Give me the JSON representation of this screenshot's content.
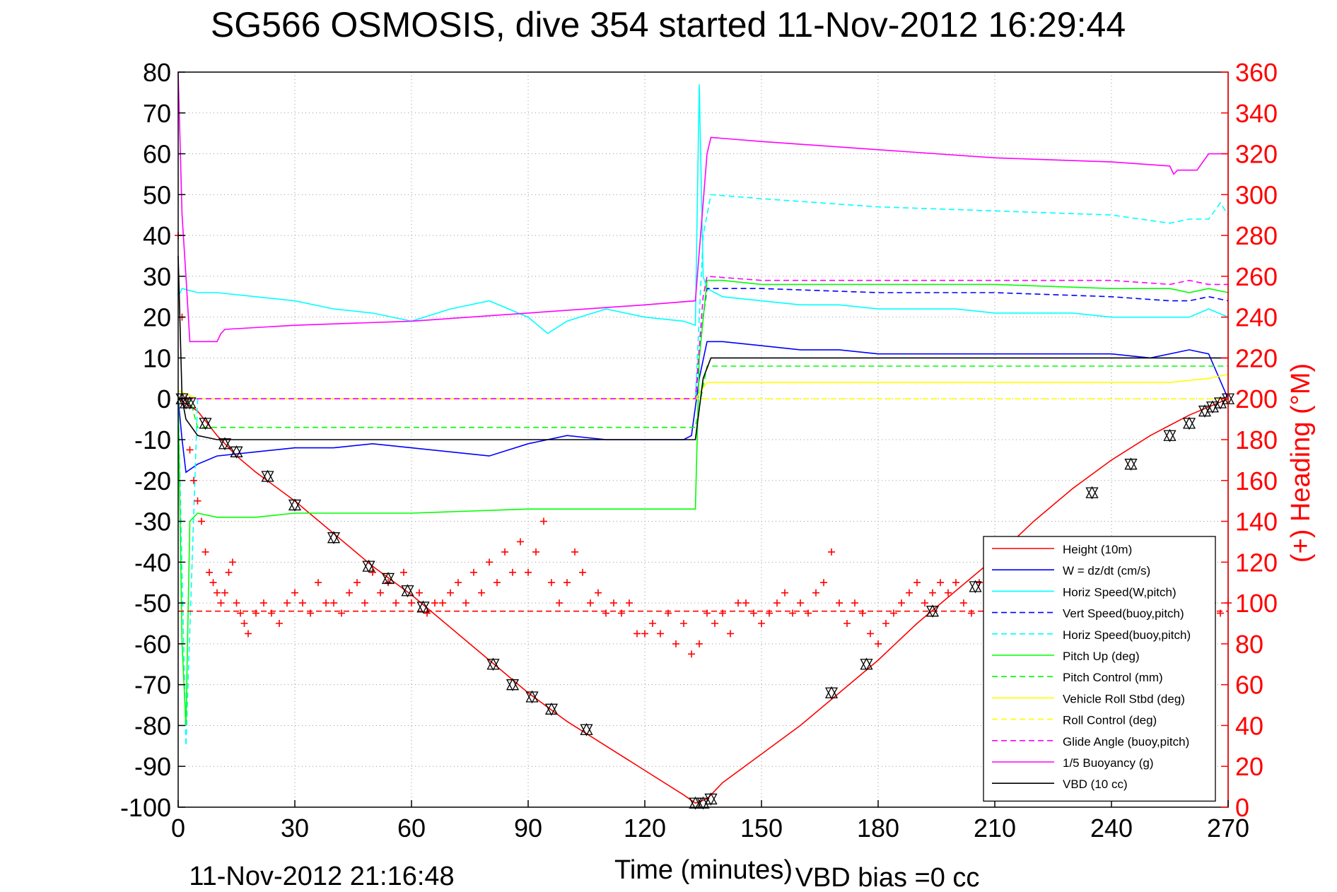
{
  "chart_data": {
    "type": "line",
    "title": "SG566 OSMOSIS, dive 354 started 11-Nov-2012 16:29:44",
    "xlabel": "Time (minutes)",
    "ylabel_right": "(+) Heading (°M)",
    "footer_left": "11-Nov-2012 21:16:48",
    "footer_right": "VBD bias =0 cc",
    "xlim": [
      0,
      270
    ],
    "ylim_left": [
      -100,
      80
    ],
    "ylim_right": [
      0,
      360
    ],
    "xticks": [
      0,
      30,
      60,
      90,
      120,
      150,
      180,
      210,
      240,
      270
    ],
    "yticks_left": [
      80,
      70,
      60,
      50,
      40,
      30,
      20,
      10,
      0,
      -10,
      -20,
      -30,
      -40,
      -50,
      -60,
      -70,
      -80,
      -90,
      -100
    ],
    "yticks_right": [
      360,
      340,
      320,
      300,
      280,
      260,
      240,
      220,
      200,
      180,
      160,
      140,
      120,
      100,
      80,
      60,
      40,
      20,
      0
    ],
    "grid": true,
    "legend_position": "bottom-right",
    "colors": {
      "height": "#ff0000",
      "w": "#0000ff",
      "hspeed": "#00ffff",
      "pitch": "#00ff00",
      "roll": "#ffff00",
      "glide": "#ff00ff",
      "vbd": "#000000",
      "heading": "#ff0000"
    },
    "series": [
      {
        "name": "Height (10m)",
        "color": "#ff0000",
        "style": "solid",
        "marker": "",
        "x": [
          0,
          5,
          10,
          15,
          20,
          30,
          40,
          50,
          60,
          70,
          80,
          90,
          100,
          110,
          120,
          130,
          133,
          136,
          140,
          150,
          160,
          170,
          180,
          190,
          200,
          210,
          220,
          230,
          240,
          250,
          260,
          270
        ],
        "y": [
          0,
          -3,
          -9,
          -14,
          -18,
          -25,
          -33,
          -41,
          -48,
          -56,
          -64,
          -72,
          -79,
          -85,
          -91,
          -97,
          -99,
          -98,
          -94,
          -87,
          -80,
          -72,
          -64,
          -55,
          -47,
          -39,
          -30,
          -22,
          -15,
          -9,
          -4,
          0
        ]
      },
      {
        "name": "W = dz/dt (cm/s)",
        "color": "#0000ff",
        "style": "solid",
        "marker": "",
        "x": [
          0,
          1,
          2,
          5,
          10,
          20,
          30,
          40,
          50,
          60,
          70,
          80,
          90,
          100,
          110,
          120,
          130,
          132,
          134,
          136,
          140,
          150,
          160,
          170,
          180,
          190,
          200,
          210,
          220,
          230,
          240,
          250,
          260,
          265,
          270
        ],
        "y": [
          0,
          -10,
          -18,
          -16,
          -14,
          -13,
          -12,
          -12,
          -11,
          -12,
          -13,
          -14,
          -11,
          -9,
          -10,
          -10,
          -10,
          -9,
          5,
          14,
          14,
          13,
          12,
          12,
          11,
          11,
          11,
          11,
          11,
          11,
          11,
          10,
          12,
          11,
          0
        ]
      },
      {
        "name": "Horiz Speed(W,pitch)",
        "color": "#00ffff",
        "style": "solid",
        "marker": "",
        "x": [
          0,
          1,
          5,
          10,
          20,
          30,
          40,
          50,
          60,
          70,
          80,
          90,
          95,
          100,
          110,
          120,
          130,
          133,
          134,
          135,
          136,
          140,
          150,
          160,
          170,
          180,
          190,
          200,
          210,
          220,
          230,
          240,
          250,
          260,
          265,
          270
        ],
        "y": [
          25,
          27,
          26,
          26,
          25,
          24,
          22,
          21,
          19,
          22,
          24,
          20,
          16,
          19,
          22,
          20,
          19,
          18,
          77,
          30,
          27,
          25,
          24,
          23,
          23,
          22,
          22,
          22,
          21,
          21,
          21,
          20,
          20,
          20,
          22,
          20
        ]
      },
      {
        "name": "Vert Speed(buoy,pitch)",
        "color": "#0000ff",
        "style": "dashed",
        "marker": "",
        "x": [
          0,
          5,
          30,
          60,
          90,
          120,
          133,
          135,
          136,
          150,
          180,
          210,
          240,
          255,
          260,
          265,
          270
        ],
        "y": [
          0,
          0,
          0,
          0,
          0,
          0,
          0,
          20,
          27,
          27,
          26,
          26,
          25,
          24,
          24,
          25,
          24
        ]
      },
      {
        "name": "Horiz Speed(buoy,pitch)",
        "color": "#00ffff",
        "style": "dashed",
        "marker": "",
        "x": [
          0,
          2,
          5,
          30,
          60,
          90,
          120,
          133,
          135,
          137,
          150,
          180,
          210,
          240,
          255,
          260,
          265,
          268,
          270
        ],
        "y": [
          0,
          -85,
          0,
          0,
          0,
          0,
          0,
          0,
          40,
          50,
          49,
          47,
          46,
          45,
          43,
          44,
          44,
          48,
          45
        ]
      },
      {
        "name": "Pitch Up (deg)",
        "color": "#00ff00",
        "style": "solid",
        "marker": "",
        "x": [
          0,
          1,
          2,
          3,
          5,
          10,
          20,
          30,
          60,
          90,
          110,
          120,
          133,
          134,
          136,
          140,
          150,
          180,
          210,
          240,
          255,
          260,
          265,
          270
        ],
        "y": [
          0,
          -60,
          -80,
          -30,
          -28,
          -29,
          -29,
          -28,
          -28,
          -27,
          -27,
          -27,
          -27,
          10,
          29,
          29,
          28,
          28,
          28,
          27,
          27,
          26,
          27,
          26
        ]
      },
      {
        "name": "Pitch Control (mm)",
        "color": "#00ff00",
        "style": "dashed",
        "marker": "",
        "x": [
          0,
          3,
          5,
          30,
          60,
          90,
          120,
          133,
          136,
          150,
          180,
          210,
          240,
          270
        ],
        "y": [
          0,
          0,
          -7,
          -7,
          -7,
          -7,
          -7,
          -7,
          8,
          8,
          8,
          8,
          8,
          8
        ]
      },
      {
        "name": "Vehicle Roll Stbd (deg)",
        "color": "#ffff00",
        "style": "solid",
        "marker": "",
        "x": [
          0,
          5,
          30,
          60,
          90,
          120,
          133,
          136,
          150,
          180,
          210,
          240,
          255,
          265,
          270
        ],
        "y": [
          2,
          0,
          0,
          0,
          0,
          0,
          0,
          4,
          4,
          4,
          4,
          4,
          4,
          5,
          6
        ]
      },
      {
        "name": "Roll Control (deg)",
        "color": "#ffff00",
        "style": "dashed",
        "marker": "",
        "x": [
          0,
          30,
          60,
          90,
          120,
          133,
          136,
          150,
          180,
          210,
          240,
          270
        ],
        "y": [
          0,
          0,
          0,
          0,
          0,
          0,
          0,
          0,
          0,
          0,
          0,
          0
        ]
      },
      {
        "name": "Glide Angle (buoy,pitch)",
        "color": "#ff00ff",
        "style": "dashed",
        "marker": "",
        "x": [
          0,
          30,
          60,
          90,
          120,
          133,
          135,
          136,
          150,
          180,
          210,
          240,
          255,
          260,
          265,
          270
        ],
        "y": [
          0,
          0,
          0,
          0,
          0,
          0,
          25,
          30,
          29,
          29,
          29,
          29,
          28,
          29,
          28,
          28
        ]
      },
      {
        "name": "1/5 Buoyancy (g)",
        "color": "#ff00ff",
        "style": "solid",
        "marker": "",
        "x": [
          0,
          1,
          2,
          3,
          10,
          11,
          12,
          30,
          60,
          90,
          120,
          133,
          136,
          137,
          150,
          180,
          210,
          240,
          255,
          256,
          257,
          262,
          265,
          270
        ],
        "y": [
          80,
          45,
          30,
          14,
          14,
          16,
          17,
          18,
          19,
          21,
          23,
          24,
          60,
          64,
          63,
          61,
          59,
          58,
          57,
          55,
          56,
          56,
          60,
          60
        ]
      },
      {
        "name": "VBD (10 cc)",
        "color": "#000000",
        "style": "solid",
        "marker": "",
        "x": [
          0,
          1,
          2,
          5,
          10,
          30,
          60,
          90,
          120,
          133,
          135,
          137,
          150,
          180,
          210,
          240,
          255,
          265,
          270
        ],
        "y": [
          35,
          0,
          -5,
          -9,
          -10,
          -10,
          -10,
          -10,
          -10,
          -10,
          5,
          10,
          10,
          10,
          10,
          10,
          10,
          10,
          10
        ]
      },
      {
        "name": "",
        "color": "#ff0000",
        "style": "dashed",
        "marker": "",
        "axis": "left",
        "x": [
          0,
          270
        ],
        "y": [
          -52,
          -52
        ]
      }
    ],
    "heading": {
      "color": "#ff0000",
      "marker": "+",
      "axis": "right",
      "x": [
        0,
        1,
        2,
        3,
        4,
        5,
        6,
        7,
        8,
        9,
        10,
        11,
        12,
        13,
        14,
        15,
        16,
        17,
        18,
        20,
        22,
        24,
        26,
        28,
        30,
        32,
        34,
        36,
        38,
        40,
        42,
        44,
        46,
        48,
        50,
        52,
        54,
        56,
        58,
        60,
        62,
        64,
        66,
        68,
        70,
        72,
        74,
        76,
        78,
        80,
        82,
        84,
        86,
        88,
        90,
        92,
        94,
        96,
        98,
        100,
        102,
        104,
        106,
        108,
        110,
        112,
        114,
        116,
        118,
        120,
        122,
        124,
        126,
        128,
        130,
        132,
        134,
        136,
        138,
        140,
        142,
        144,
        146,
        148,
        150,
        152,
        154,
        156,
        158,
        160,
        162,
        164,
        166,
        168,
        170,
        172,
        174,
        176,
        178,
        180,
        182,
        184,
        186,
        188,
        190,
        192,
        194,
        196,
        198,
        200,
        202,
        204,
        206,
        208,
        210,
        212,
        214,
        216,
        218,
        220,
        222,
        224,
        226,
        228,
        230,
        232,
        234,
        236,
        238,
        240,
        242,
        244,
        246,
        248,
        250,
        252,
        254,
        256,
        258,
        260,
        262,
        264,
        266,
        268,
        270
      ],
      "y": [
        280,
        240,
        200,
        175,
        160,
        150,
        140,
        125,
        115,
        110,
        105,
        100,
        105,
        115,
        120,
        100,
        95,
        90,
        85,
        95,
        100,
        95,
        90,
        100,
        105,
        100,
        95,
        110,
        100,
        100,
        95,
        105,
        110,
        100,
        115,
        105,
        110,
        100,
        115,
        100,
        105,
        95,
        100,
        100,
        105,
        110,
        100,
        115,
        105,
        120,
        110,
        125,
        115,
        130,
        115,
        125,
        140,
        110,
        100,
        110,
        125,
        115,
        100,
        105,
        95,
        100,
        95,
        100,
        85,
        85,
        90,
        85,
        95,
        80,
        90,
        75,
        80,
        95,
        90,
        95,
        85,
        100,
        100,
        95,
        90,
        95,
        100,
        105,
        95,
        100,
        95,
        105,
        110,
        125,
        100,
        90,
        100,
        95,
        85,
        80,
        90,
        95,
        100,
        105,
        110,
        100,
        105,
        110,
        105,
        110,
        100,
        95,
        110,
        105,
        115,
        120,
        110,
        115,
        125,
        120,
        110,
        115,
        120,
        115,
        120,
        110,
        115,
        120,
        110,
        115,
        120,
        110,
        120,
        115,
        110,
        120,
        115,
        110,
        100,
        95,
        100,
        105,
        100,
        95,
        100
      ]
    },
    "triangle_markers": {
      "x": [
        1,
        2,
        3,
        7,
        12,
        15,
        23,
        30,
        40,
        49,
        54,
        59,
        63,
        81,
        86,
        91,
        96,
        105,
        133,
        135,
        137,
        168,
        177,
        194,
        205,
        235,
        245,
        255,
        260,
        264,
        266,
        268,
        270
      ],
      "y": [
        0,
        -1,
        -1,
        -6,
        -11,
        -13,
        -19,
        -26,
        -34,
        -41,
        -44,
        -47,
        -51,
        -65,
        -70,
        -73,
        -76,
        -81,
        -99,
        -99,
        -98,
        -72,
        -65,
        -52,
        -46,
        -23,
        -16,
        -9,
        -6,
        -3,
        -2,
        -1,
        0
      ]
    }
  }
}
